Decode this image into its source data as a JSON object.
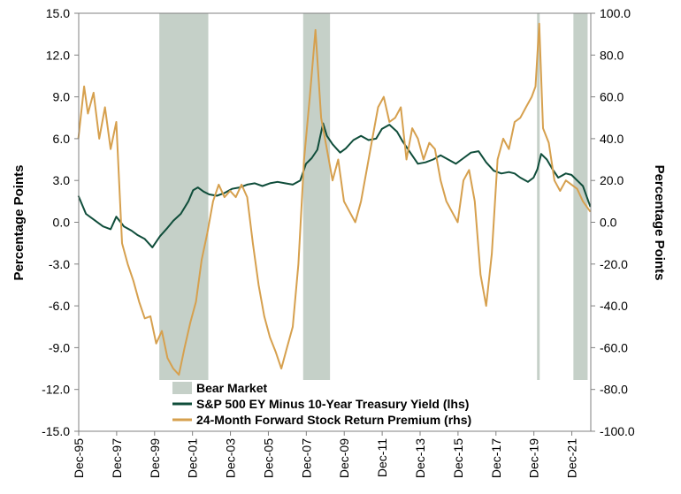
{
  "chart_data": {
    "type": "line",
    "ylabel_left": "Percentage Points",
    "ylabel_right": "Percentage Points",
    "ylim_left": [
      -15,
      15
    ],
    "ylim_right": [
      -100,
      100
    ],
    "y_ticks_left": [
      "15.0",
      "12.0",
      "9.0",
      "6.0",
      "3.0",
      "0.0",
      "-3.0",
      "-6.0",
      "-9.0",
      "-12.0",
      "-15.0"
    ],
    "y_ticks_right": [
      "100.0",
      "80.0",
      "60.0",
      "40.0",
      "20.0",
      "0.0",
      "-20.0",
      "-40.0",
      "-60.0",
      "-80.0",
      "-100.0"
    ],
    "x_ticks": [
      "Dec-95",
      "Dec-97",
      "Dec-99",
      "Dec-01",
      "Dec-03",
      "Dec-05",
      "Dec-07",
      "Dec-09",
      "Dec-11",
      "Dec-13",
      "Dec-15",
      "Dec-17",
      "Dec-19",
      "Dec-21"
    ],
    "x_range": [
      "1995-12",
      "2022-12"
    ],
    "grid": false,
    "legend_position": "bottom-center",
    "bear_markets": [
      {
        "start": "2000-03",
        "end": "2002-10"
      },
      {
        "start": "2007-10",
        "end": "2009-03"
      },
      {
        "start": "2020-02",
        "end": "2020-03"
      },
      {
        "start": "2022-01",
        "end": "2022-10"
      }
    ],
    "series": [
      {
        "name": "S&P 500 EY Minus 10-Year Treasury Yield (lhs)",
        "axis": "left",
        "color": "#0f4d3a",
        "x": [
          1995.9,
          1996.3,
          1996.7,
          1997.2,
          1997.6,
          1997.9,
          1998.3,
          1998.7,
          1999.0,
          1999.4,
          1999.8,
          2000.2,
          2000.6,
          2000.9,
          2001.3,
          2001.7,
          2001.95,
          2002.2,
          2002.5,
          2002.8,
          2003.2,
          2003.6,
          2004.0,
          2004.4,
          2004.8,
          2005.2,
          2005.6,
          2006.0,
          2006.4,
          2006.8,
          2007.2,
          2007.6,
          2007.9,
          2008.2,
          2008.5,
          2008.8,
          2009.0,
          2009.3,
          2009.7,
          2010.0,
          2010.4,
          2010.8,
          2011.2,
          2011.6,
          2011.9,
          2012.3,
          2012.7,
          2013.0,
          2013.4,
          2013.8,
          2014.2,
          2014.6,
          2015.0,
          2015.4,
          2015.8,
          2016.2,
          2016.6,
          2017.0,
          2017.4,
          2017.8,
          2018.2,
          2018.6,
          2018.9,
          2019.2,
          2019.6,
          2019.9,
          2020.1,
          2020.3,
          2020.6,
          2020.9,
          2021.2,
          2021.6,
          2021.9,
          2022.2,
          2022.5,
          2022.9
        ],
        "values": [
          1.9,
          0.6,
          0.2,
          -0.3,
          -0.5,
          0.4,
          -0.3,
          -0.6,
          -0.9,
          -1.2,
          -1.8,
          -1.0,
          -0.4,
          0.1,
          0.6,
          1.5,
          2.3,
          2.5,
          2.2,
          2.0,
          1.9,
          2.1,
          2.4,
          2.5,
          2.7,
          2.8,
          2.6,
          2.8,
          2.9,
          2.8,
          2.7,
          3.0,
          4.2,
          4.6,
          5.2,
          7.1,
          6.2,
          5.6,
          5.0,
          5.3,
          5.9,
          6.2,
          5.9,
          6.0,
          6.7,
          7.0,
          6.5,
          5.8,
          5.0,
          4.2,
          4.3,
          4.5,
          4.8,
          4.5,
          4.2,
          4.6,
          5.0,
          5.1,
          4.3,
          3.7,
          3.5,
          3.6,
          3.5,
          3.2,
          2.9,
          3.2,
          3.8,
          4.9,
          4.5,
          3.8,
          3.2,
          3.5,
          3.4,
          3.0,
          2.6,
          1.1
        ]
      },
      {
        "name": "24-Month Forward Stock Return Premium (rhs)",
        "axis": "right",
        "color": "#d6a04e",
        "x": [
          1995.9,
          1996.2,
          1996.4,
          1996.7,
          1997.0,
          1997.3,
          1997.6,
          1997.9,
          1998.2,
          1998.5,
          1998.8,
          1999.1,
          1999.4,
          1999.7,
          2000.0,
          2000.3,
          2000.6,
          2000.9,
          2001.2,
          2001.5,
          2001.8,
          2002.1,
          2002.4,
          2002.7,
          2003.0,
          2003.3,
          2003.6,
          2003.9,
          2004.2,
          2004.5,
          2004.8,
          2005.1,
          2005.4,
          2005.7,
          2006.0,
          2006.3,
          2006.6,
          2006.9,
          2007.2,
          2007.5,
          2007.8,
          2008.1,
          2008.4,
          2008.7,
          2009.0,
          2009.3,
          2009.6,
          2009.9,
          2010.2,
          2010.5,
          2010.8,
          2011.1,
          2011.4,
          2011.7,
          2012.0,
          2012.3,
          2012.6,
          2012.9,
          2013.2,
          2013.5,
          2013.8,
          2014.1,
          2014.4,
          2014.7,
          2015.0,
          2015.3,
          2015.6,
          2015.9,
          2016.2,
          2016.5,
          2016.8,
          2017.1,
          2017.4,
          2017.7,
          2018.0,
          2018.3,
          2018.6,
          2018.9,
          2019.2,
          2019.5,
          2019.8,
          2020.0,
          2020.2,
          2020.4,
          2020.7,
          2021.0,
          2021.3,
          2021.6,
          2021.9,
          2022.2,
          2022.5,
          2022.9
        ],
        "values": [
          40,
          65,
          52,
          62,
          40,
          55,
          35,
          48,
          -10,
          -20,
          -28,
          -38,
          -46,
          -45,
          -58,
          -52,
          -65,
          -70,
          -73,
          -60,
          -48,
          -38,
          -18,
          -5,
          10,
          18,
          12,
          15,
          12,
          18,
          12,
          -10,
          -30,
          -45,
          -55,
          -62,
          -70,
          -60,
          -50,
          -20,
          30,
          60,
          92,
          50,
          35,
          20,
          30,
          10,
          5,
          0,
          10,
          25,
          40,
          55,
          60,
          48,
          50,
          55,
          30,
          45,
          40,
          30,
          38,
          35,
          20,
          10,
          5,
          0,
          20,
          25,
          10,
          -25,
          -40,
          -15,
          30,
          40,
          35,
          48,
          50,
          55,
          60,
          65,
          95,
          45,
          38,
          20,
          15,
          20,
          18,
          16,
          10,
          5
        ]
      }
    ]
  },
  "legend": {
    "bear_market_label": "Bear Market",
    "series1_label": "S&P 500 EY Minus 10-Year Treasury Yield (lhs)",
    "series2_label": "24-Month Forward Stock Return Premium (rhs)",
    "bear_color": "#c5d0c8"
  }
}
